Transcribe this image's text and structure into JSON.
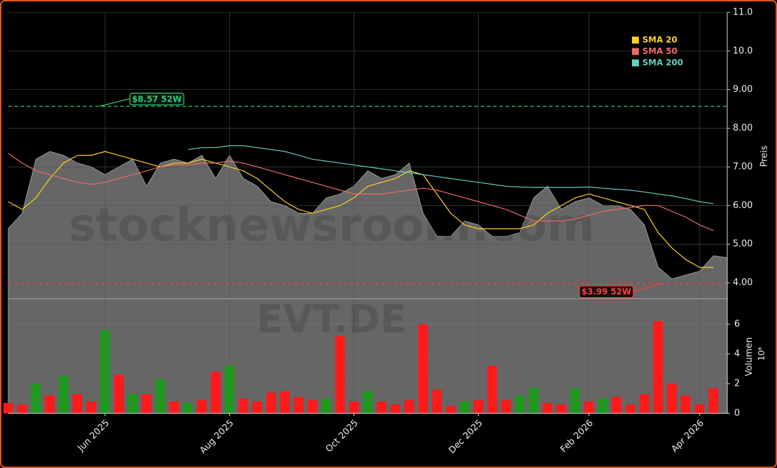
{
  "chart_data": {
    "type": "line",
    "categories": [
      null,
      null,
      null,
      null,
      null,
      null,
      null,
      "Jun 2025",
      null,
      null,
      null,
      null,
      null,
      null,
      null,
      null,
      "Aug 2025",
      null,
      null,
      null,
      null,
      null,
      null,
      null,
      null,
      "Oct 2025",
      null,
      null,
      null,
      null,
      null,
      null,
      null,
      null,
      "Dec 2025",
      null,
      null,
      null,
      null,
      null,
      null,
      null,
      "Feb 2026",
      null,
      null,
      null,
      null,
      null,
      null,
      null,
      "Apr 2026",
      null,
      null
    ],
    "close": {
      "color": "#666666",
      "values": [
        5.4,
        5.8,
        7.2,
        7.4,
        7.3,
        7.1,
        7.0,
        6.8,
        7.0,
        7.2,
        6.5,
        7.1,
        7.2,
        7.1,
        7.3,
        6.7,
        7.3,
        6.7,
        6.5,
        6.1,
        6.0,
        5.8,
        5.8,
        6.2,
        6.3,
        6.5,
        6.9,
        6.7,
        6.8,
        7.1,
        5.8,
        5.2,
        5.2,
        5.6,
        5.5,
        5.2,
        5.2,
        5.3,
        6.2,
        6.5,
        5.9,
        6.1,
        6.2,
        6.0,
        6.0,
        5.9,
        5.5,
        4.4,
        4.1,
        4.2,
        4.3,
        4.7,
        4.65
      ]
    },
    "series": [
      {
        "name": "SMA 20",
        "color": "#ffd21f",
        "values": [
          6.1,
          5.9,
          6.2,
          6.7,
          7.1,
          7.3,
          7.3,
          7.4,
          7.3,
          7.2,
          7.1,
          7.0,
          7.1,
          7.1,
          7.2,
          7.1,
          7.0,
          6.9,
          6.7,
          6.4,
          6.1,
          5.9,
          5.8,
          5.9,
          6.0,
          6.2,
          6.5,
          6.6,
          6.7,
          6.9,
          6.8,
          6.3,
          5.8,
          5.5,
          5.4,
          5.4,
          5.4,
          5.4,
          5.5,
          5.8,
          6.0,
          6.2,
          6.3,
          6.2,
          6.1,
          6.0,
          5.9,
          5.3,
          4.9,
          4.6,
          4.4,
          4.4,
          null
        ]
      },
      {
        "name": "SMA 50",
        "color": "#f06a6a",
        "values": [
          7.35,
          7.1,
          6.9,
          6.8,
          6.7,
          6.6,
          6.55,
          6.6,
          6.7,
          6.8,
          6.9,
          7.0,
          7.05,
          7.05,
          7.1,
          7.1,
          7.15,
          7.1,
          7.0,
          6.9,
          6.8,
          6.7,
          6.6,
          6.5,
          6.4,
          6.3,
          6.3,
          6.3,
          6.35,
          6.4,
          6.45,
          6.4,
          6.3,
          6.2,
          6.1,
          6.0,
          5.9,
          5.75,
          5.6,
          5.6,
          5.6,
          5.65,
          5.75,
          5.85,
          5.9,
          5.95,
          6.0,
          6.0,
          5.85,
          5.7,
          5.5,
          5.35,
          null
        ]
      },
      {
        "name": "SMA 200",
        "color": "#5fd0c0",
        "values": [
          null,
          null,
          null,
          null,
          null,
          null,
          null,
          null,
          null,
          null,
          null,
          null,
          null,
          7.45,
          7.5,
          7.5,
          7.55,
          7.55,
          7.5,
          7.45,
          7.4,
          7.3,
          7.2,
          7.15,
          7.1,
          7.05,
          7.0,
          6.95,
          6.9,
          6.85,
          6.8,
          6.75,
          6.7,
          6.65,
          6.6,
          6.55,
          6.5,
          6.48,
          6.47,
          6.47,
          6.47,
          6.47,
          6.48,
          6.45,
          6.42,
          6.4,
          6.35,
          6.3,
          6.25,
          6.18,
          6.1,
          6.05,
          null
        ]
      }
    ],
    "volume": {
      "axis": "y2",
      "values": [
        0.7,
        0.6,
        2.0,
        1.2,
        2.5,
        1.3,
        0.8,
        5.6,
        2.6,
        1.3,
        1.3,
        2.3,
        0.8,
        0.7,
        0.9,
        2.8,
        3.2,
        1.0,
        0.8,
        1.4,
        1.5,
        1.1,
        0.9,
        1.0,
        5.2,
        0.8,
        1.5,
        0.8,
        0.6,
        0.9,
        6.0,
        1.6,
        0.5,
        0.8,
        0.9,
        3.2,
        0.9,
        1.2,
        1.7,
        0.7,
        0.6,
        1.7,
        0.8,
        1.0,
        1.1,
        0.6,
        1.3,
        6.2,
        2.0,
        1.2,
        0.6,
        1.7,
        null
      ],
      "colors": [
        "#ff1a1a",
        "#ff1a1a",
        "#1f9a1f",
        "#ff1a1a",
        "#1f9a1f",
        "#ff1a1a",
        "#ff1a1a",
        "#1f9a1f",
        "#ff1a1a",
        "#1f9a1f",
        "#ff1a1a",
        "#1f9a1f",
        "#ff1a1a",
        "#1f9a1f",
        "#ff1a1a",
        "#ff1a1a",
        "#1f9a1f",
        "#ff1a1a",
        "#ff1a1a",
        "#ff1a1a",
        "#ff1a1a",
        "#ff1a1a",
        "#ff1a1a",
        "#1f9a1f",
        "#ff1a1a",
        "#ff1a1a",
        "#1f9a1f",
        "#ff1a1a",
        "#ff1a1a",
        "#ff1a1a",
        "#ff1a1a",
        "#ff1a1a",
        "#ff1a1a",
        "#1f9a1f",
        "#ff1a1a",
        "#ff1a1a",
        "#ff1a1a",
        "#1f9a1f",
        "#1f9a1f",
        "#ff1a1a",
        "#ff1a1a",
        "#1f9a1f",
        "#ff1a1a",
        "#1f9a1f",
        "#ff1a1a",
        "#ff1a1a",
        "#ff1a1a",
        "#ff1a1a",
        "#ff1a1a",
        "#ff1a1a",
        "#ff1a1a",
        "#ff1a1a",
        "#ff1a1a"
      ]
    },
    "ylim": [
      3.59,
      11.0
    ],
    "yticks": [
      {
        "value": 4,
        "label": "4.00"
      },
      {
        "value": 5,
        "label": "5.00"
      },
      {
        "value": 6,
        "label": "6.00"
      },
      {
        "value": 7,
        "label": "7.00"
      },
      {
        "value": 8,
        "label": "8.00"
      },
      {
        "value": 9,
        "label": "9.00"
      },
      {
        "value": 10,
        "label": "10.0"
      },
      {
        "value": 11,
        "label": "11.0"
      }
    ],
    "y2lim": [
      0,
      7.72
    ],
    "y2ticks": [
      0,
      2,
      4,
      6
    ],
    "ylabel": "Preis",
    "y2label": "Volumen",
    "y2offset": "10⁶",
    "annotations": [
      {
        "text": "$8.57 52W",
        "value": 8.57,
        "color": "#2ecc71",
        "index": 6.6
      },
      {
        "text": "$3.99 52W",
        "value": 3.99,
        "color": "#ff4040",
        "index": 47.3
      }
    ],
    "watermarks": [
      "stocknewsroom.com",
      "EVT.DE"
    ],
    "grid": true,
    "legend": "upper right"
  }
}
